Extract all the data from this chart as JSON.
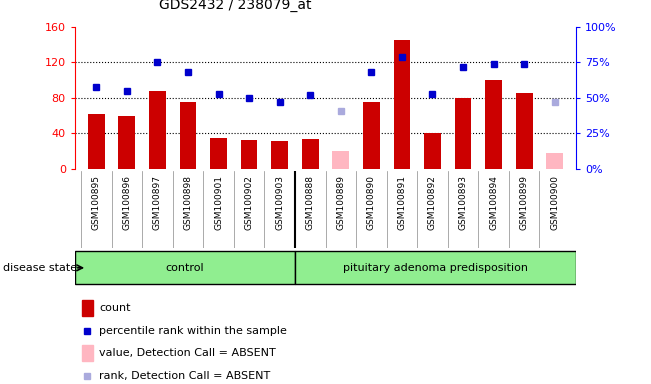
{
  "title": "GDS2432 / 238079_at",
  "samples": [
    "GSM100895",
    "GSM100896",
    "GSM100897",
    "GSM100898",
    "GSM100901",
    "GSM100902",
    "GSM100903",
    "GSM100888",
    "GSM100889",
    "GSM100890",
    "GSM100891",
    "GSM100892",
    "GSM100893",
    "GSM100894",
    "GSM100899",
    "GSM100900"
  ],
  "bar_values": [
    62,
    60,
    88,
    75,
    35,
    33,
    32,
    34,
    null,
    75,
    145,
    40,
    80,
    100,
    85,
    null
  ],
  "absent_bar_values": [
    null,
    null,
    null,
    null,
    null,
    null,
    null,
    null,
    20,
    null,
    null,
    null,
    null,
    null,
    null,
    18
  ],
  "dot_values": [
    58,
    55,
    75,
    68,
    53,
    50,
    47,
    52,
    null,
    68,
    79,
    53,
    72,
    74,
    74,
    null
  ],
  "absent_dot_values": [
    null,
    null,
    null,
    null,
    null,
    null,
    null,
    null,
    41,
    null,
    null,
    null,
    null,
    null,
    null,
    47
  ],
  "left_ylim": [
    0,
    160
  ],
  "right_ylim": [
    0,
    100
  ],
  "left_yticks": [
    0,
    40,
    80,
    120,
    160
  ],
  "right_yticks": [
    0,
    25,
    50,
    75,
    100
  ],
  "right_yticklabels": [
    "0%",
    "25%",
    "50%",
    "75%",
    "100%"
  ],
  "bar_color": "#CC0000",
  "absent_bar_color": "#FFB6C1",
  "dot_color": "#0000CC",
  "absent_dot_color": "#AAAADD",
  "bg_color": "#FFFFFF",
  "plot_bg_color": "#FFFFFF",
  "ctrl_n": 7,
  "control_label": "control",
  "disease_label": "pituitary adenoma predisposition",
  "disease_state_label": "disease state",
  "legend_items": [
    {
      "label": "count",
      "color": "#CC0000",
      "type": "bar"
    },
    {
      "label": "percentile rank within the sample",
      "color": "#0000CC",
      "type": "dot"
    },
    {
      "label": "value, Detection Call = ABSENT",
      "color": "#FFB6C1",
      "type": "bar"
    },
    {
      "label": "rank, Detection Call = ABSENT",
      "color": "#AAAADD",
      "type": "dot"
    }
  ]
}
